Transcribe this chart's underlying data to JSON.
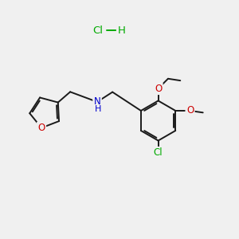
{
  "bg_color": "#f0f0f0",
  "bond_color": "#1a1a1a",
  "atom_colors": {
    "O": "#cc0000",
    "N": "#0000cc",
    "Cl_green": "#00aa00"
  },
  "bond_width": 1.4,
  "font_size": 8.5
}
